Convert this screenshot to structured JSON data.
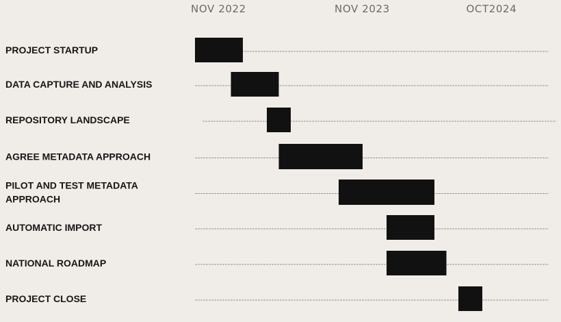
{
  "colors": {
    "background": "#f0ede8",
    "bar": "#111111",
    "guide_line": "#8a8a8a",
    "tick_text": "#6a6a6a",
    "label_text": "#161616"
  },
  "chart_data": {
    "type": "gantt",
    "title": "",
    "xlabel": "",
    "ylabel": "",
    "grid": false,
    "legend": "none",
    "x_axis": {
      "position": "top",
      "ticks": [
        {
          "label": "NOV 2022",
          "date": "2022-11"
        },
        {
          "label": "NOV 2023",
          "date": "2023-11"
        },
        {
          "label": "OCT2024",
          "date": "2024-10"
        }
      ]
    },
    "tasks": [
      {
        "label_lines": [
          "PROJECT STARTUP"
        ],
        "start": "2022-11",
        "end": "2023-03"
      },
      {
        "label_lines": [
          "DATA CAPTURE AND ANALYSIS"
        ],
        "start": "2023-02",
        "end": "2023-06"
      },
      {
        "label_lines": [
          "REPOSITORY LANDSCAPE"
        ],
        "start": "2023-05",
        "end": "2023-07"
      },
      {
        "label_lines": [
          "AGREE METADATA APPROACH"
        ],
        "start": "2023-06",
        "end": "2024-01"
      },
      {
        "label_lines": [
          "PILOT AND TEST METADATA",
          "APPROACH"
        ],
        "start": "2023-11",
        "end": "2024-07"
      },
      {
        "label_lines": [
          "AUTOMATIC IMPORT"
        ],
        "start": "2024-03",
        "end": "2024-07"
      },
      {
        "label_lines": [
          "NATIONAL ROADMAP"
        ],
        "start": "2024-03",
        "end": "2024-08"
      },
      {
        "label_lines": [
          "PROJECT CLOSE"
        ],
        "start": "2024-09",
        "end": "2024-11"
      }
    ]
  }
}
